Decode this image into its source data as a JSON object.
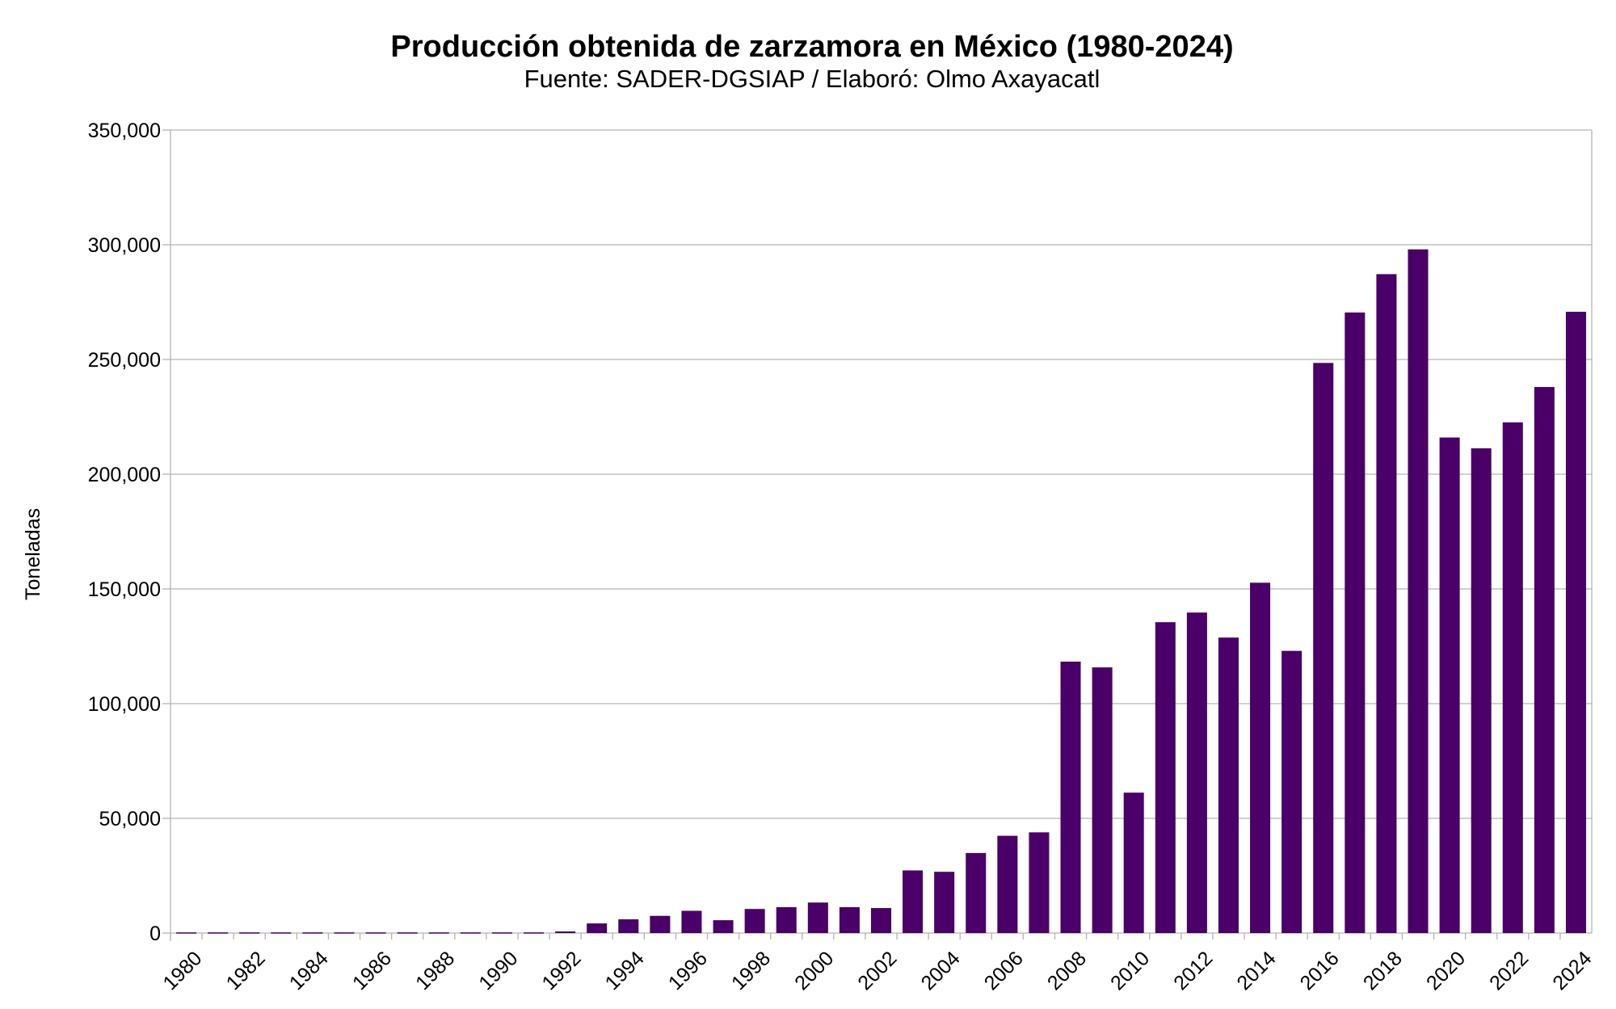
{
  "chart_data": {
    "type": "bar",
    "title": "Producción obtenida de zarzamora en México (1980-2024)",
    "subtitle": "Fuente: SADER-DGSIAP / Elaboró: Olmo Axayacatl",
    "xlabel": "",
    "ylabel": "Toneladas",
    "ylim": [
      0,
      350000
    ],
    "yticks": [
      "0",
      "50,000",
      "100,000",
      "150,000",
      "200,000",
      "250,000",
      "300,000",
      "350,000"
    ],
    "grid": true,
    "bar_color": "#4b0069",
    "categories": [
      "1980",
      "1981",
      "1982",
      "1983",
      "1984",
      "1985",
      "1986",
      "1987",
      "1988",
      "1989",
      "1990",
      "1991",
      "1992",
      "1993",
      "1994",
      "1995",
      "1996",
      "1997",
      "1998",
      "1999",
      "2000",
      "2001",
      "2002",
      "2003",
      "2004",
      "2005",
      "2006",
      "2007",
      "2008",
      "2009",
      "2010",
      "2011",
      "2012",
      "2013",
      "2014",
      "2015",
      "2016",
      "2017",
      "2018",
      "2019",
      "2020",
      "2021",
      "2022",
      "2023",
      "2024"
    ],
    "xtick_labels": [
      "1980",
      "1982",
      "1984",
      "1986",
      "1988",
      "1990",
      "1992",
      "1994",
      "1996",
      "1998",
      "2000",
      "2002",
      "2004",
      "2006",
      "2008",
      "2010",
      "2012",
      "2014",
      "2016",
      "2018",
      "2020",
      "2022",
      "2024"
    ],
    "values": [
      300,
      300,
      300,
      300,
      300,
      300,
      300,
      300,
      300,
      300,
      300,
      300,
      700,
      4200,
      6000,
      7500,
      9700,
      5600,
      10500,
      11300,
      13300,
      11300,
      10900,
      27300,
      26700,
      34900,
      42400,
      43900,
      118300,
      115800,
      61200,
      135500,
      139700,
      128800,
      152700,
      123000,
      248500,
      270500,
      287200,
      298000,
      216000,
      211300,
      222600,
      238000,
      270800
    ]
  }
}
